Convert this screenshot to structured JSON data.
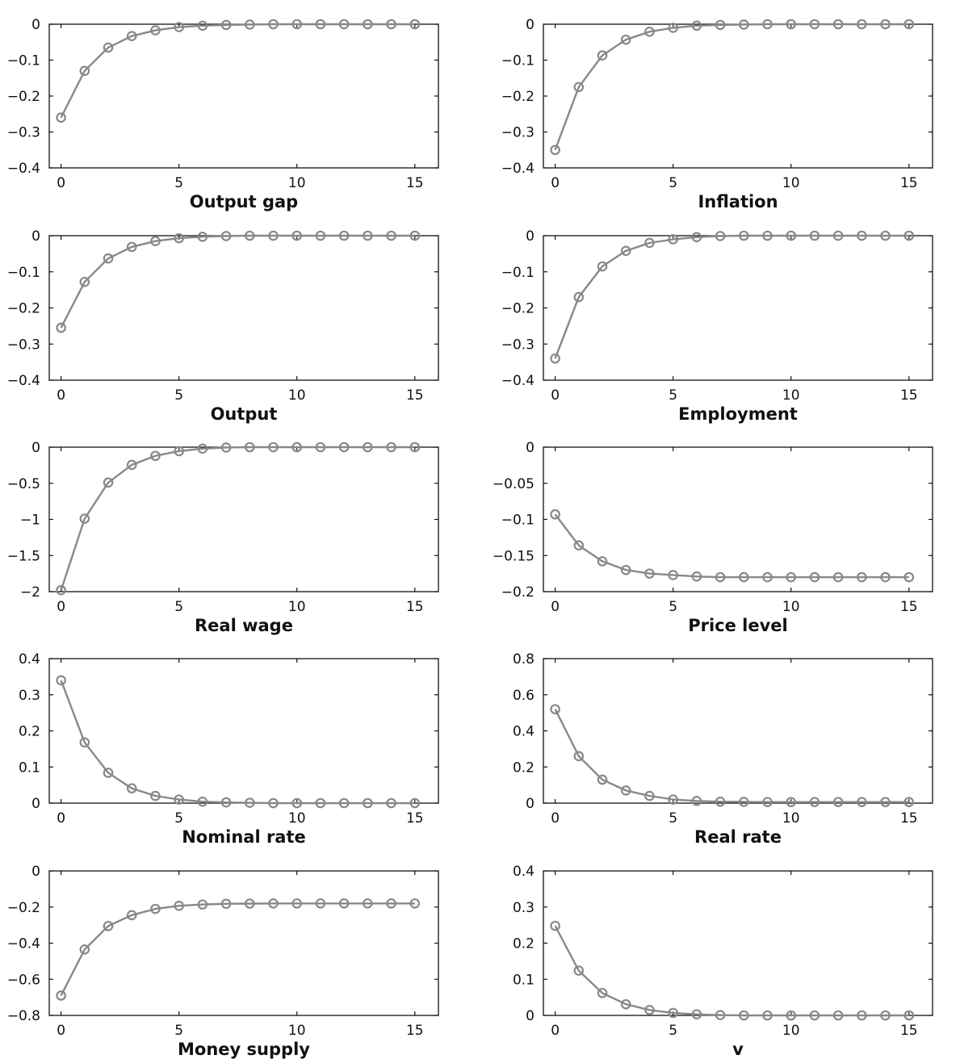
{
  "series_color": "#888888",
  "chart_data": [
    {
      "type": "line",
      "title": "Output gap",
      "x": [
        0,
        1,
        2,
        3,
        4,
        5,
        6,
        7,
        8,
        9,
        10,
        11,
        12,
        13,
        14,
        15
      ],
      "values": [
        -0.26,
        -0.13,
        -0.065,
        -0.033,
        -0.017,
        -0.008,
        -0.004,
        -0.002,
        -0.001,
        0,
        0,
        0,
        0,
        0,
        0,
        0
      ],
      "ylim": [
        -0.4,
        0
      ],
      "xlim": [
        -0.5,
        16
      ],
      "yticks": [
        0,
        -0.1,
        -0.2,
        -0.3,
        -0.4
      ],
      "ytick_labels": [
        "0",
        "−0.1",
        "−0.2",
        "−0.3",
        "−0.4"
      ],
      "xticks": [
        0,
        5,
        10,
        15
      ],
      "xtick_labels": [
        "0",
        "5",
        "10",
        "15"
      ]
    },
    {
      "type": "line",
      "title": "Inflation",
      "x": [
        0,
        1,
        2,
        3,
        4,
        5,
        6,
        7,
        8,
        9,
        10,
        11,
        12,
        13,
        14,
        15
      ],
      "values": [
        -0.35,
        -0.175,
        -0.087,
        -0.043,
        -0.021,
        -0.01,
        -0.004,
        -0.002,
        -0.001,
        0,
        0,
        0,
        0,
        0,
        0,
        0
      ],
      "ylim": [
        -0.4,
        0
      ],
      "xlim": [
        -0.5,
        16
      ],
      "yticks": [
        0,
        -0.1,
        -0.2,
        -0.3,
        -0.4
      ],
      "ytick_labels": [
        "0",
        "−0.1",
        "−0.2",
        "−0.3",
        "−0.4"
      ],
      "xticks": [
        0,
        5,
        10,
        15
      ],
      "xtick_labels": [
        "0",
        "5",
        "10",
        "15"
      ]
    },
    {
      "type": "line",
      "title": "Output",
      "x": [
        0,
        1,
        2,
        3,
        4,
        5,
        6,
        7,
        8,
        9,
        10,
        11,
        12,
        13,
        14,
        15
      ],
      "values": [
        -0.255,
        -0.128,
        -0.063,
        -0.031,
        -0.015,
        -0.007,
        -0.003,
        -0.001,
        0,
        0,
        0,
        0,
        0,
        0,
        0,
        0
      ],
      "ylim": [
        -0.4,
        0
      ],
      "xlim": [
        -0.5,
        16
      ],
      "yticks": [
        0,
        -0.1,
        -0.2,
        -0.3,
        -0.4
      ],
      "ytick_labels": [
        "0",
        "−0.1",
        "−0.2",
        "−0.3",
        "−0.4"
      ],
      "xticks": [
        0,
        5,
        10,
        15
      ],
      "xtick_labels": [
        "0",
        "5",
        "10",
        "15"
      ]
    },
    {
      "type": "line",
      "title": "Employment",
      "x": [
        0,
        1,
        2,
        3,
        4,
        5,
        6,
        7,
        8,
        9,
        10,
        11,
        12,
        13,
        14,
        15
      ],
      "values": [
        -0.34,
        -0.17,
        -0.085,
        -0.042,
        -0.02,
        -0.01,
        -0.004,
        -0.001,
        0,
        0,
        0,
        0,
        0,
        0,
        0,
        0
      ],
      "ylim": [
        -0.4,
        0
      ],
      "xlim": [
        -0.5,
        16
      ],
      "yticks": [
        0,
        -0.1,
        -0.2,
        -0.3,
        -0.4
      ],
      "ytick_labels": [
        "0",
        "−0.1",
        "−0.2",
        "−0.3",
        "−0.4"
      ],
      "xticks": [
        0,
        5,
        10,
        15
      ],
      "xtick_labels": [
        "0",
        "5",
        "10",
        "15"
      ]
    },
    {
      "type": "line",
      "title": "Real wage",
      "x": [
        0,
        1,
        2,
        3,
        4,
        5,
        6,
        7,
        8,
        9,
        10,
        11,
        12,
        13,
        14,
        15
      ],
      "values": [
        -1.98,
        -0.99,
        -0.49,
        -0.245,
        -0.12,
        -0.055,
        -0.02,
        -0.005,
        0,
        0,
        0,
        0,
        0,
        0,
        0,
        0
      ],
      "ylim": [
        -2,
        0
      ],
      "xlim": [
        -0.5,
        16
      ],
      "yticks": [
        0,
        -0.5,
        -1,
        -1.5,
        -2
      ],
      "ytick_labels": [
        "0",
        "−0.5",
        "−1",
        "−1.5",
        "−2"
      ],
      "xticks": [
        0,
        5,
        10,
        15
      ],
      "xtick_labels": [
        "0",
        "5",
        "10",
        "15"
      ]
    },
    {
      "type": "line",
      "title": "Price level",
      "x": [
        0,
        1,
        2,
        3,
        4,
        5,
        6,
        7,
        8,
        9,
        10,
        11,
        12,
        13,
        14,
        15
      ],
      "values": [
        -0.093,
        -0.136,
        -0.158,
        -0.17,
        -0.175,
        -0.177,
        -0.179,
        -0.18,
        -0.18,
        -0.18,
        -0.18,
        -0.18,
        -0.18,
        -0.18,
        -0.18,
        -0.18
      ],
      "ylim": [
        -0.2,
        0
      ],
      "xlim": [
        -0.5,
        16
      ],
      "yticks": [
        0,
        -0.05,
        -0.1,
        -0.15,
        -0.2
      ],
      "ytick_labels": [
        "0",
        "−0.05",
        "−0.1",
        "−0.15",
        "−0.2"
      ],
      "xticks": [
        0,
        5,
        10,
        15
      ],
      "xtick_labels": [
        "0",
        "5",
        "10",
        "15"
      ]
    },
    {
      "type": "line",
      "title": "Nominal rate",
      "x": [
        0,
        1,
        2,
        3,
        4,
        5,
        6,
        7,
        8,
        9,
        10,
        11,
        12,
        13,
        14,
        15
      ],
      "values": [
        0.34,
        0.168,
        0.084,
        0.041,
        0.02,
        0.01,
        0.004,
        0.002,
        0.001,
        0,
        0,
        0,
        0,
        0,
        0,
        0
      ],
      "ylim": [
        0,
        0.4
      ],
      "xlim": [
        -0.5,
        16
      ],
      "yticks": [
        0.4,
        0.3,
        0.2,
        0.1,
        0
      ],
      "ytick_labels": [
        "0.4",
        "0.3",
        "0.2",
        "0.1",
        "0"
      ],
      "xticks": [
        0,
        5,
        10,
        15
      ],
      "xtick_labels": [
        "0",
        "5",
        "10",
        "15"
      ]
    },
    {
      "type": "line",
      "title": "Real rate",
      "x": [
        0,
        1,
        2,
        3,
        4,
        5,
        6,
        7,
        8,
        9,
        10,
        11,
        12,
        13,
        14,
        15
      ],
      "values": [
        0.52,
        0.26,
        0.13,
        0.07,
        0.04,
        0.02,
        0.012,
        0.008,
        0.007,
        0.006,
        0.006,
        0.006,
        0.006,
        0.006,
        0.006,
        0.006
      ],
      "ylim": [
        0,
        0.8
      ],
      "xlim": [
        -0.5,
        16
      ],
      "yticks": [
        0.8,
        0.6,
        0.4,
        0.2,
        0
      ],
      "ytick_labels": [
        "0.8",
        "0.6",
        "0.4",
        "0.2",
        "0"
      ],
      "xticks": [
        0,
        5,
        10,
        15
      ],
      "xtick_labels": [
        "0",
        "5",
        "10",
        "15"
      ]
    },
    {
      "type": "line",
      "title": "Money supply",
      "x": [
        0,
        1,
        2,
        3,
        4,
        5,
        6,
        7,
        8,
        9,
        10,
        11,
        12,
        13,
        14,
        15
      ],
      "values": [
        -0.69,
        -0.435,
        -0.305,
        -0.245,
        -0.21,
        -0.193,
        -0.186,
        -0.182,
        -0.181,
        -0.18,
        -0.18,
        -0.18,
        -0.18,
        -0.18,
        -0.18,
        -0.18
      ],
      "ylim": [
        -0.8,
        0
      ],
      "xlim": [
        -0.5,
        16
      ],
      "yticks": [
        0,
        -0.2,
        -0.4,
        -0.6,
        -0.8
      ],
      "ytick_labels": [
        "0",
        "−0.2",
        "−0.4",
        "−0.6",
        "−0.8"
      ],
      "xticks": [
        0,
        5,
        10,
        15
      ],
      "xtick_labels": [
        "0",
        "5",
        "10",
        "15"
      ]
    },
    {
      "type": "line",
      "title": "v",
      "x": [
        0,
        1,
        2,
        3,
        4,
        5,
        6,
        7,
        8,
        9,
        10,
        11,
        12,
        13,
        14,
        15
      ],
      "values": [
        0.248,
        0.124,
        0.062,
        0.031,
        0.015,
        0.007,
        0.003,
        0.001,
        0,
        0,
        0,
        0,
        0,
        0,
        0,
        0
      ],
      "ylim": [
        0,
        0.4
      ],
      "xlim": [
        -0.5,
        16
      ],
      "yticks": [
        0.4,
        0.3,
        0.2,
        0.1,
        0
      ],
      "ytick_labels": [
        "0.4",
        "0.3",
        "0.2",
        "0.1",
        "0"
      ],
      "xticks": [
        0,
        5,
        10,
        15
      ],
      "xtick_labels": [
        "0",
        "5",
        "10",
        "15"
      ]
    }
  ]
}
